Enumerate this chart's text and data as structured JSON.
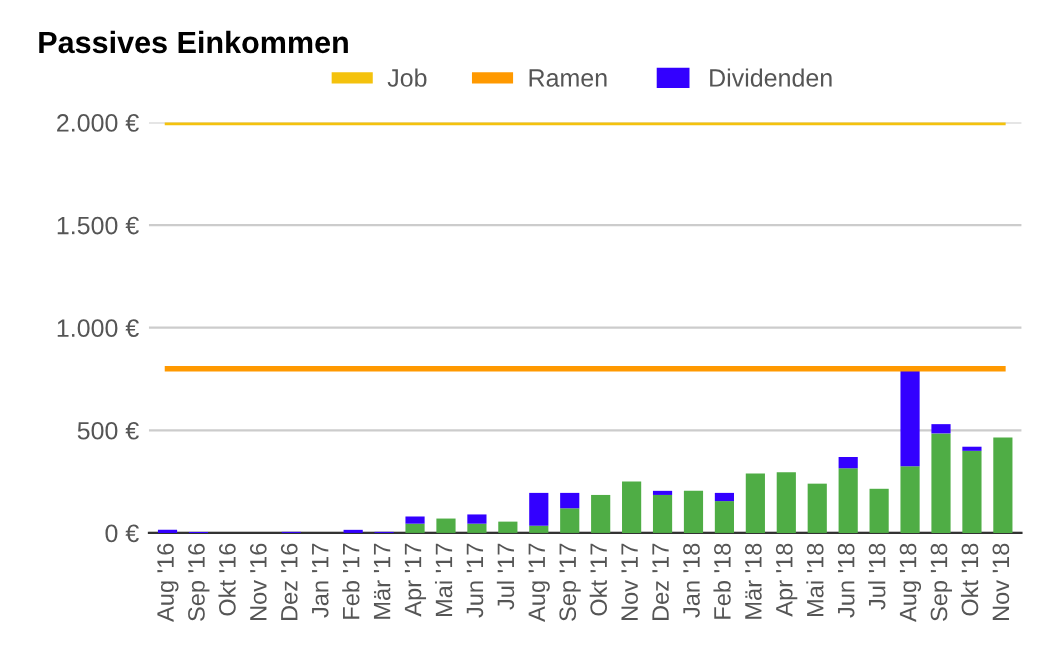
{
  "chart_data": {
    "type": "bar",
    "title": "Passives Einkommen",
    "stacked": true,
    "categories": [
      "Aug '16",
      "Sep '16",
      "Okt '16",
      "Nov '16",
      "Dez '16",
      "Jan '17",
      "Feb '17",
      "Mär '17",
      "Apr '17",
      "Mai '17",
      "Jun '17",
      "Jul '17",
      "Aug '17",
      "Sep '17",
      "Okt '17",
      "Nov '17",
      "Dez '17",
      "Jan '18",
      "Feb '18",
      "Mär '18",
      "Apr '18",
      "Mai '18",
      "Jun '18",
      "Jul '18",
      "Aug '18",
      "Sep '18",
      "Okt '18",
      "Nov '18"
    ],
    "series": [
      {
        "name": "Job",
        "type": "line",
        "color": "#f4c20d",
        "values": [
          2000,
          2000,
          2000,
          2000,
          2000,
          2000,
          2000,
          2000,
          2000,
          2000,
          2000,
          2000,
          2000,
          2000,
          2000,
          2000,
          2000,
          2000,
          2000,
          2000,
          2000,
          2000,
          2000,
          2000,
          2000,
          2000,
          2000,
          2000
        ]
      },
      {
        "name": "Ramen",
        "type": "line",
        "color": "#ff9900",
        "values": [
          800,
          800,
          800,
          800,
          800,
          800,
          800,
          800,
          800,
          800,
          800,
          800,
          800,
          800,
          800,
          800,
          800,
          800,
          800,
          800,
          800,
          800,
          800,
          800,
          800,
          800,
          800,
          800
        ]
      },
      {
        "color": "#4fad45",
        "values": [
          0,
          0,
          0,
          0,
          0,
          0,
          0,
          0,
          45,
          70,
          45,
          55,
          35,
          120,
          185,
          250,
          185,
          205,
          155,
          290,
          295,
          240,
          315,
          215,
          325,
          485,
          400,
          465
        ]
      },
      {
        "name": "Dividenden",
        "color": "#3300ff",
        "values": [
          15,
          5,
          0,
          0,
          5,
          0,
          15,
          5,
          35,
          0,
          45,
          0,
          160,
          75,
          0,
          0,
          20,
          0,
          40,
          0,
          0,
          0,
          55,
          0,
          475,
          45,
          20,
          0
        ]
      }
    ],
    "ylim": [
      0,
      2000
    ],
    "yticks": [
      {
        "value": 0,
        "label": "0 €"
      },
      {
        "value": 500,
        "label": "500 €"
      },
      {
        "value": 1000,
        "label": "1.000 €"
      },
      {
        "value": 1500,
        "label": "1.500 €"
      },
      {
        "value": 2000,
        "label": "2.000 €"
      }
    ],
    "grid": "y",
    "legend": "top"
  }
}
